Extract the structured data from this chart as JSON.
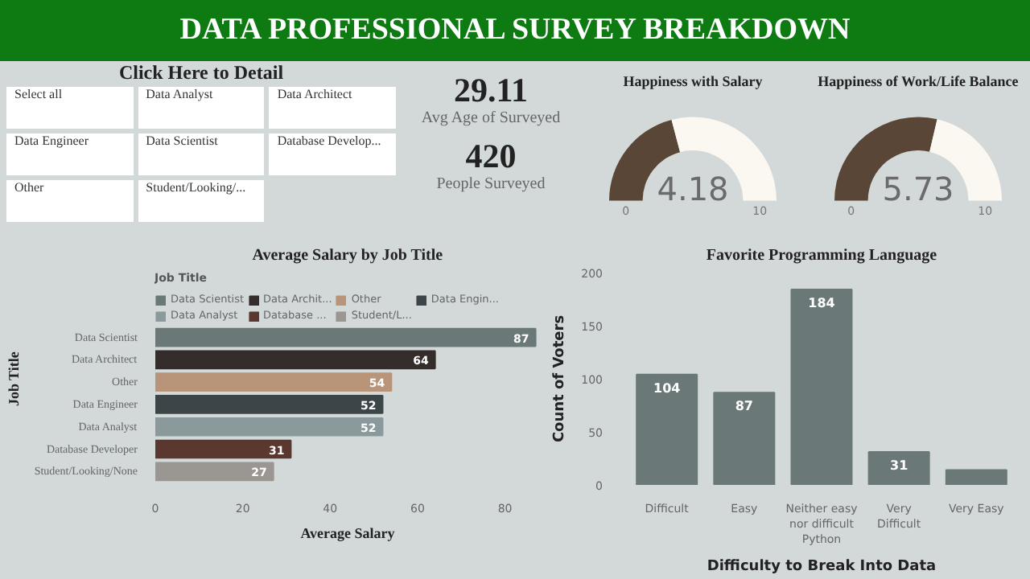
{
  "chart_data": [
    {
      "type": "other",
      "title": "DATA PROFESSIONAL SURVEY BREAKDOWN"
    },
    {
      "type": "other",
      "title": "Click Here to Detail",
      "annotations": [
        "Select all",
        "Data Analyst",
        "Data Architect",
        "Data Engineer",
        "Data Scientist",
        "Database Develop...",
        "Other",
        "Student/Looking/..."
      ]
    },
    {
      "type": "other",
      "annotations": [
        "29.11",
        "Avg Age of Surveyed",
        "420",
        "People Surveyed"
      ]
    },
    {
      "type": "donut",
      "title": "Happiness with Salary",
      "categories": [
        null,
        null
      ],
      "values": [
        4.18,
        5.82
      ],
      "colors": [
        "#5a4636",
        "#fbf8f2"
      ],
      "value_labels": [
        "4.18",
        null
      ],
      "annotations": [
        "0",
        "10"
      ]
    },
    {
      "type": "donut",
      "title": "Happiness of Work/Life Balance",
      "categories": [
        null,
        null
      ],
      "values": [
        5.73,
        4.27
      ],
      "colors": [
        "#5a4636",
        "#fbf8f2"
      ],
      "value_labels": [
        "5.73",
        null
      ],
      "annotations": [
        "0",
        "10"
      ]
    },
    {
      "type": "bar",
      "orientation": "horizontal",
      "title": "Average Salary by Job Title",
      "xlabel": "Average Salary",
      "ylabel": "Job Title",
      "legend_title": "Job Title",
      "legend": "top",
      "data_labels": true,
      "categories": [
        "Data Scientist",
        "Data Architect",
        "Other",
        "Data Engineer",
        "Data Analyst",
        "Database Developer",
        "Student/Looking/None"
      ],
      "xlim": [
        0,
        88
      ],
      "xticks": [
        0,
        20,
        40,
        60,
        80
      ],
      "series": [
        {
          "name": "Data Scientist",
          "color": "#6b7878",
          "values": [
            87,
            null,
            null,
            null,
            null,
            null,
            null
          ]
        },
        {
          "name": "Data Archit...",
          "color": "#352c2c",
          "values": [
            null,
            64,
            null,
            null,
            null,
            null,
            null
          ]
        },
        {
          "name": "Other",
          "color": "#b89478",
          "values": [
            null,
            null,
            54,
            null,
            null,
            null,
            null
          ]
        },
        {
          "name": "Data Engin...",
          "color": "#3c4548",
          "values": [
            null,
            null,
            null,
            52,
            null,
            null,
            null
          ]
        },
        {
          "name": "Data Analyst",
          "color": "#8a9a9c",
          "values": [
            null,
            null,
            null,
            null,
            52,
            null,
            null
          ]
        },
        {
          "name": "Database ...",
          "color": "#5a3830",
          "values": [
            null,
            null,
            null,
            null,
            null,
            31,
            null
          ]
        },
        {
          "name": "Student/L...",
          "color": "#9a9692",
          "values": [
            null,
            null,
            null,
            null,
            null,
            null,
            27
          ]
        }
      ]
    },
    {
      "type": "bar",
      "title": "Favorite Programming Language",
      "xlabel": "Difficulty to Break Into Data",
      "ylabel": "Count of Voters",
      "categories": [
        "Difficult",
        "Easy",
        "Neither easy nor difficult Python",
        "Very Difficult",
        "Very Easy"
      ],
      "values": [
        104,
        87,
        184,
        31,
        14
      ],
      "value_labels": [
        "104",
        "87",
        "184",
        "31",
        null
      ],
      "color": "#6b7878",
      "ylim": [
        0,
        200
      ],
      "yticks": [
        0,
        50,
        100,
        150,
        200
      ]
    }
  ]
}
